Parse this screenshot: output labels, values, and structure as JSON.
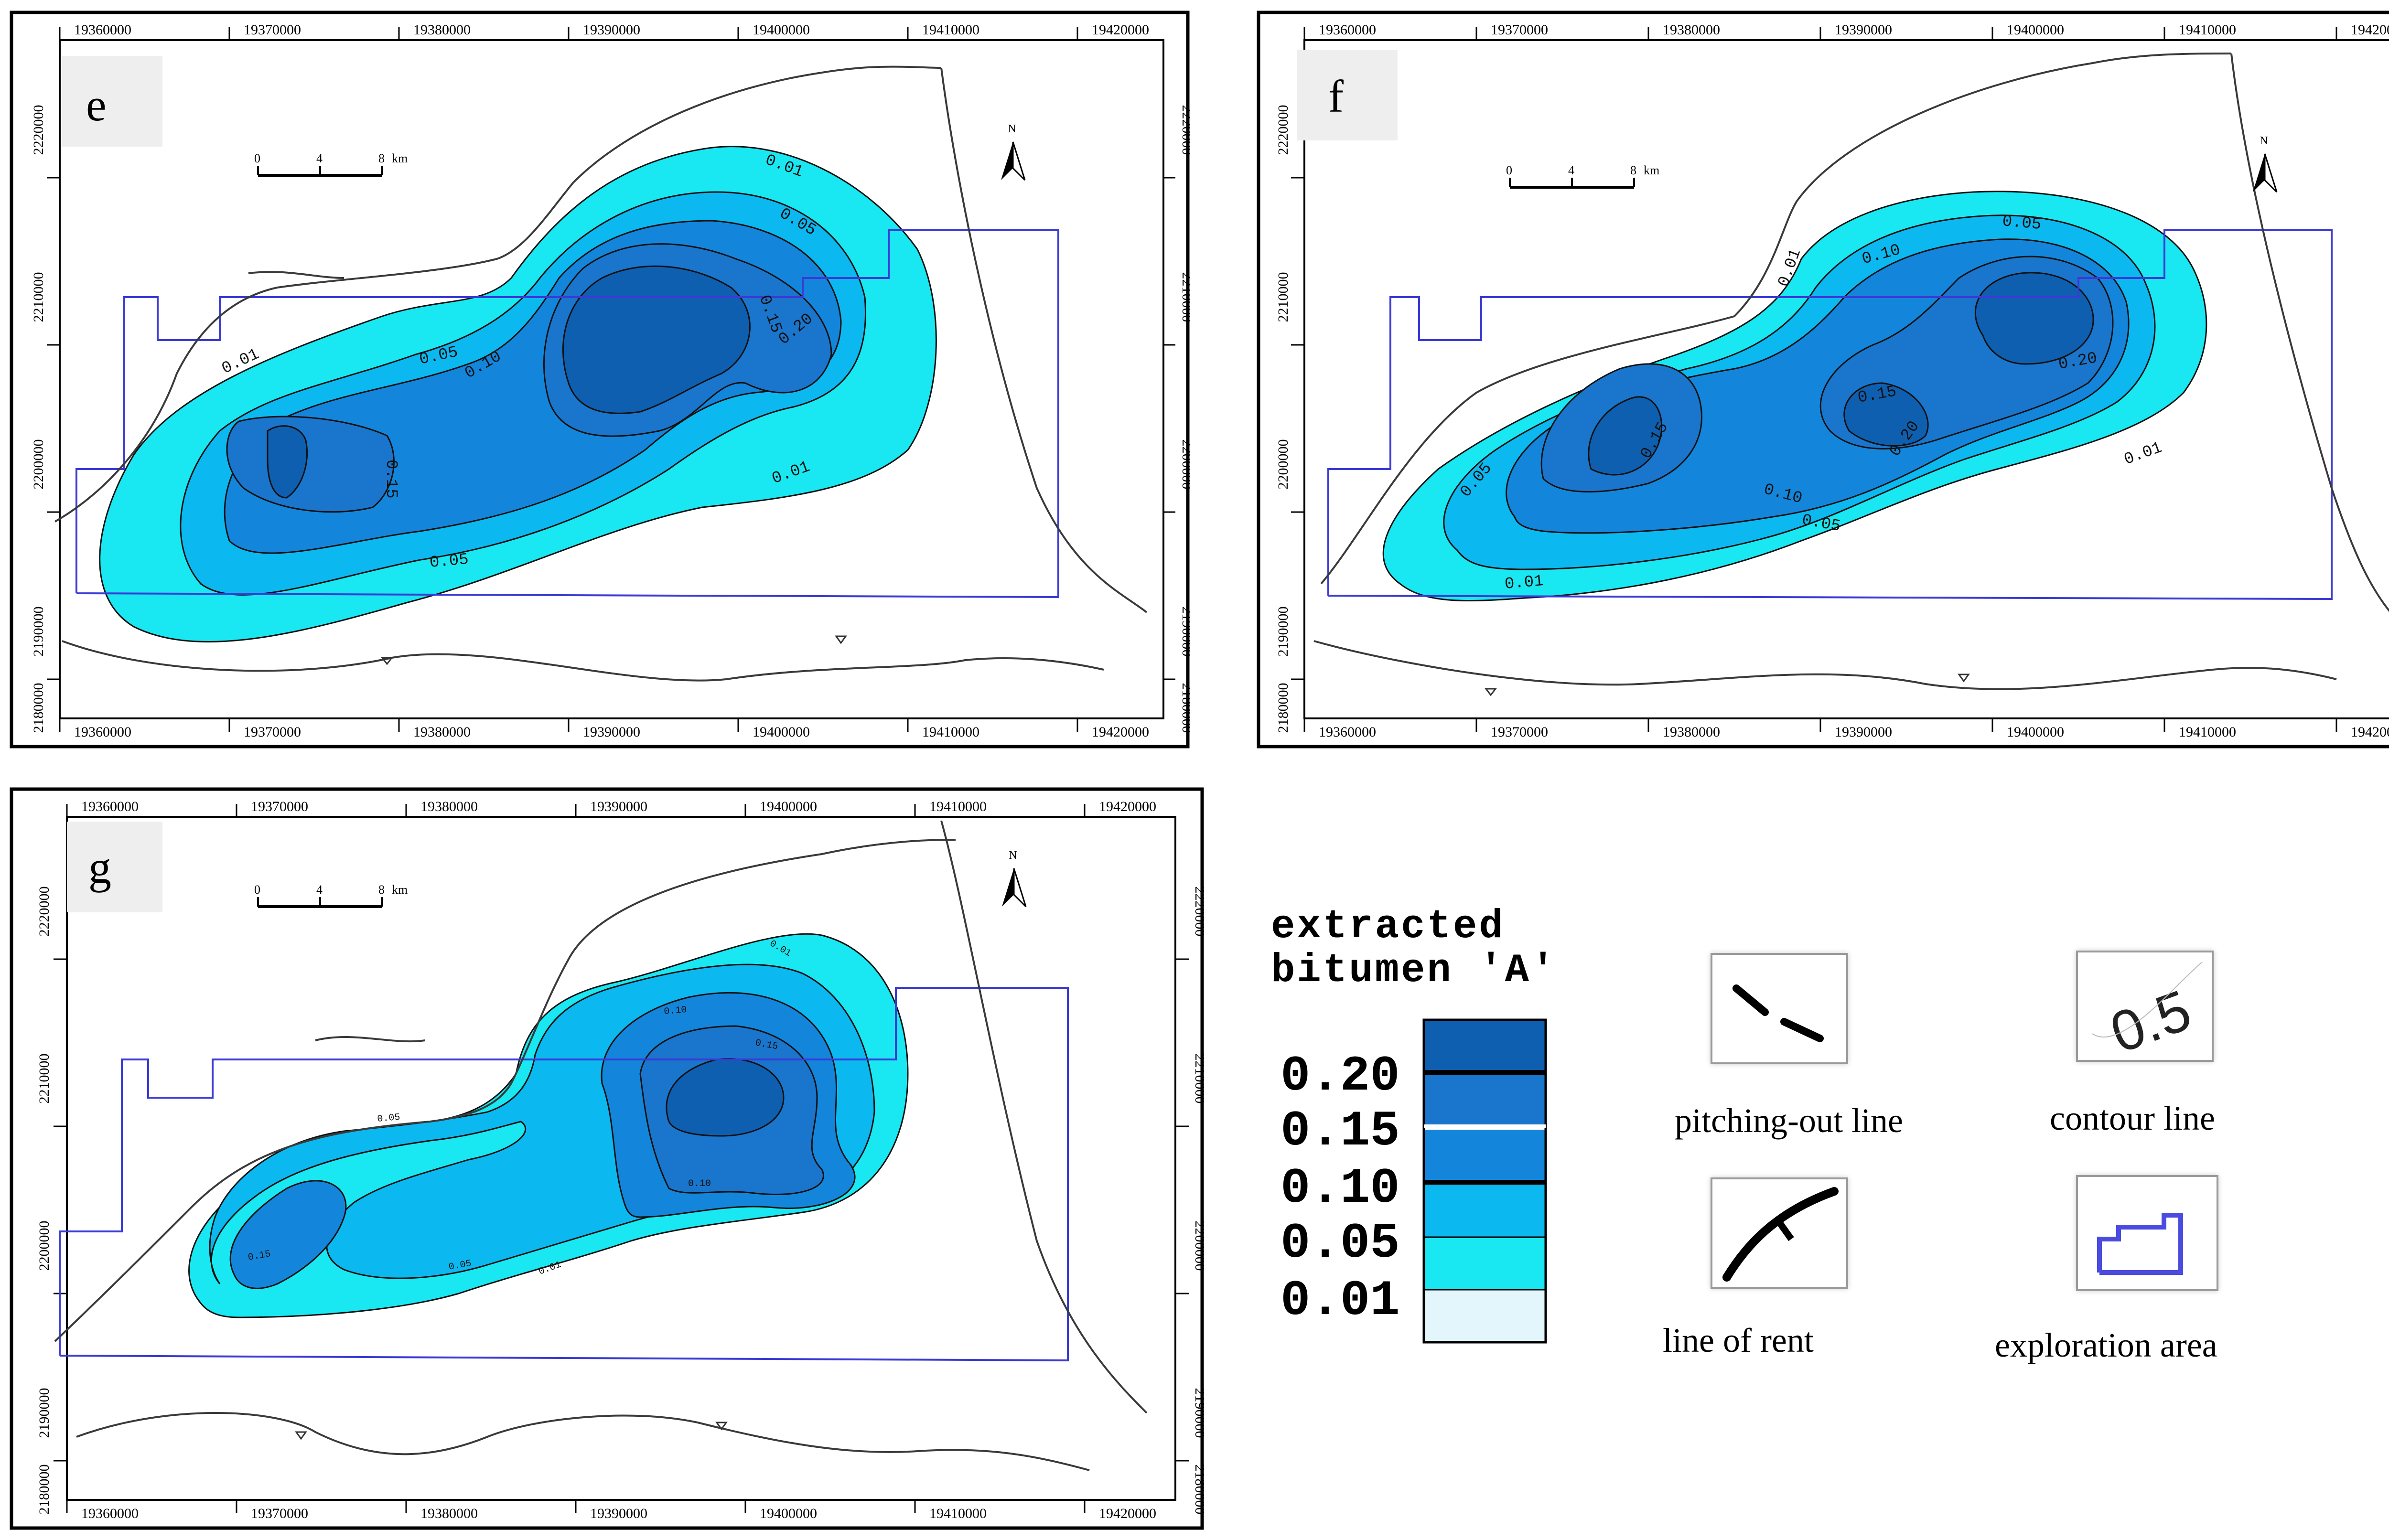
{
  "panels": [
    {
      "id": "e",
      "label": "e"
    },
    {
      "id": "f",
      "label": "f"
    },
    {
      "id": "g",
      "label": "g"
    }
  ],
  "x_ticks": [
    "19360000",
    "19370000",
    "19380000",
    "19390000",
    "19400000",
    "19410000",
    "19420000"
  ],
  "y_ticks": [
    "2220000",
    "2210000",
    "2200000",
    "2190000",
    "2180000"
  ],
  "scale_bar": {
    "labels": [
      "0",
      "4",
      "8"
    ],
    "unit": "km"
  },
  "north_label": "N",
  "contour_labels": {
    "e": [
      "0.01",
      "0.05",
      "0.10",
      "0.15",
      "0.20",
      "0.01",
      "0.05",
      "0.10",
      "0.15",
      "0.01",
      "0.05"
    ],
    "f": [
      "0.01",
      "0.10",
      "0.05",
      "0.20",
      "0.15",
      "0.05",
      "0.15",
      "0.20",
      "0.10",
      "0.05",
      "0.01",
      "0.01"
    ],
    "g": [
      "0.01",
      "0.10",
      "0.15",
      "0.05",
      "0.10",
      "0.15",
      "0.05",
      "0.01"
    ]
  },
  "legend": {
    "title_line1": "extracted",
    "title_line2": "bitumen 'A'",
    "classes": [
      {
        "value": "0.20",
        "color": "#0f5fb0"
      },
      {
        "value": "0.15",
        "color": "#1a75cc"
      },
      {
        "value": "0.10",
        "color": "#1386dc"
      },
      {
        "value": "0.05",
        "color": "#0cb8f0"
      },
      {
        "value": "0.01",
        "color": "#19e8f2"
      }
    ],
    "lowest_fill": "#e3f6fb"
  },
  "symbols": {
    "pitching_out_line": "pitching-out line",
    "contour_line": "contour line",
    "contour_sample": "0.5",
    "line_of_rent": "line of rent",
    "exploration_area": "exploration area"
  },
  "colors": {
    "exploration_boundary": "#3a3ad6",
    "rent_line": "#3a3a3a",
    "frame": "#000000"
  }
}
